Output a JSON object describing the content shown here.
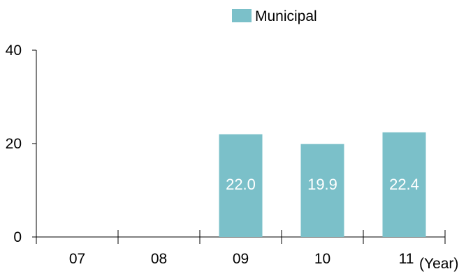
{
  "chart_data": {
    "type": "bar",
    "categories": [
      "07",
      "08",
      "09",
      "10",
      "11"
    ],
    "series": [
      {
        "name": "Municipal",
        "values": [
          null,
          null,
          22.0,
          19.9,
          22.4
        ],
        "labels": [
          "",
          "",
          "22.0",
          "19.9",
          "22.4"
        ]
      }
    ],
    "x_unit": "(Year)",
    "ylim": [
      0,
      40
    ],
    "yticks": [
      "0",
      "20",
      "40"
    ],
    "grid": false,
    "legend_position": "top",
    "colors": {
      "bar": "#7bc0c9",
      "axis": "#000000"
    }
  }
}
